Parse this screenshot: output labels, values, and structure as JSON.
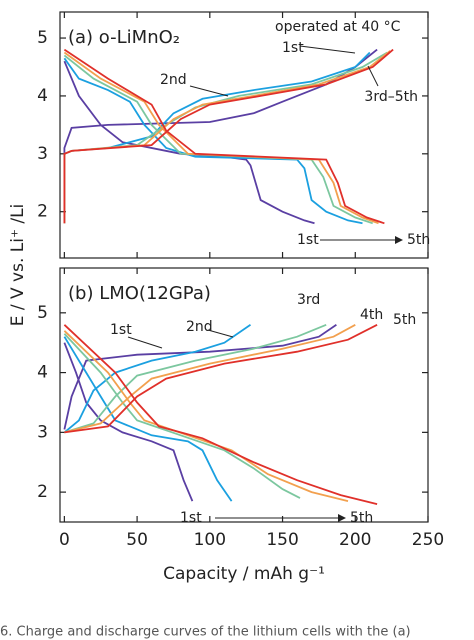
{
  "chart_data": [
    {
      "type": "line",
      "title": "(a) o-LiMnO₂",
      "y_label": "E / V vs. Li⁺ /Li",
      "xlim": [
        -3,
        250
      ],
      "ylim": [
        1.2,
        5.45
      ],
      "yticks": [
        2,
        3,
        4,
        5
      ],
      "annotations": [
        "operated at 40 °C",
        "1st",
        "2nd",
        "3rd–5th",
        "1st",
        "5th"
      ],
      "series": [
        {
          "color": "#5a3fa3",
          "x": [
            0,
            10,
            25,
            40,
            80,
            110,
            125,
            128,
            135,
            150,
            165,
            172
          ],
          "values": [
            4.6,
            4.0,
            3.5,
            3.2,
            3.0,
            2.95,
            2.9,
            2.8,
            2.2,
            2.0,
            1.85,
            1.8
          ]
        },
        {
          "color": "#5a3fa3",
          "x": [
            0,
            0,
            5,
            30,
            100,
            130,
            150,
            180,
            200,
            215
          ],
          "values": [
            1.8,
            3.1,
            3.45,
            3.5,
            3.55,
            3.7,
            3.9,
            4.2,
            4.5,
            4.8
          ]
        },
        {
          "color": "#1ba0e0",
          "x": [
            0,
            10,
            30,
            45,
            55,
            70,
            90,
            160,
            165,
            170,
            180,
            195,
            205
          ],
          "values": [
            4.65,
            4.3,
            4.1,
            3.9,
            3.5,
            3.1,
            2.95,
            2.9,
            2.75,
            2.2,
            2.0,
            1.85,
            1.8
          ]
        },
        {
          "color": "#1ba0e0",
          "x": [
            0,
            0,
            5,
            30,
            60,
            75,
            95,
            130,
            170,
            200,
            210
          ],
          "values": [
            1.8,
            3.0,
            3.05,
            3.1,
            3.3,
            3.7,
            3.95,
            4.1,
            4.25,
            4.5,
            4.75
          ]
        },
        {
          "color": "#7cc79f",
          "x": [
            0,
            20,
            50,
            60,
            80,
            170,
            178,
            185,
            200,
            212
          ],
          "values": [
            4.7,
            4.3,
            3.9,
            3.5,
            3.0,
            2.9,
            2.6,
            2.1,
            1.9,
            1.8
          ]
        },
        {
          "color": "#7cc79f",
          "x": [
            0,
            0,
            5,
            50,
            70,
            90,
            120,
            170,
            205,
            222
          ],
          "values": [
            1.8,
            3.0,
            3.05,
            3.15,
            3.5,
            3.8,
            4.0,
            4.2,
            4.5,
            4.75
          ]
        },
        {
          "color": "#f2a04e",
          "x": [
            0,
            25,
            55,
            65,
            85,
            175,
            185,
            190,
            205,
            216
          ],
          "values": [
            4.75,
            4.3,
            3.9,
            3.5,
            3.0,
            2.9,
            2.5,
            2.1,
            1.9,
            1.8
          ]
        },
        {
          "color": "#f2a04e",
          "x": [
            0,
            0,
            5,
            55,
            75,
            95,
            130,
            175,
            210,
            224
          ],
          "values": [
            1.8,
            3.0,
            3.05,
            3.15,
            3.6,
            3.85,
            4.0,
            4.2,
            4.5,
            4.78
          ]
        },
        {
          "color": "#e0302a",
          "x": [
            0,
            30,
            60,
            70,
            90,
            180,
            188,
            193,
            208,
            220
          ],
          "values": [
            4.8,
            4.3,
            3.85,
            3.4,
            3.0,
            2.9,
            2.5,
            2.1,
            1.9,
            1.8
          ]
        },
        {
          "color": "#e0302a",
          "x": [
            0,
            0,
            5,
            60,
            80,
            100,
            135,
            180,
            212,
            226
          ],
          "values": [
            1.8,
            3.0,
            3.05,
            3.15,
            3.6,
            3.85,
            4.0,
            4.2,
            4.5,
            4.8
          ]
        }
      ]
    },
    {
      "type": "line",
      "title": "(b) LMO(12GPa)",
      "x_label": "Capacity / mAh g⁻¹",
      "xlim": [
        -3,
        250
      ],
      "ylim": [
        1.5,
        5.75
      ],
      "xticks": [
        0,
        50,
        100,
        150,
        200,
        250
      ],
      "yticks": [
        2,
        3,
        4,
        5
      ],
      "annotations": [
        "1st",
        "2nd",
        "3rd",
        "4th",
        "5th",
        "1st",
        "5th"
      ],
      "series": [
        {
          "color": "#5a3fa3",
          "x": [
            0,
            8,
            15,
            25,
            40,
            60,
            75,
            82,
            88
          ],
          "values": [
            4.5,
            4.0,
            3.5,
            3.2,
            3.0,
            2.85,
            2.7,
            2.2,
            1.85
          ]
        },
        {
          "color": "#5a3fa3",
          "x": [
            0,
            5,
            15,
            50,
            100,
            150,
            175,
            187
          ],
          "values": [
            3.05,
            3.6,
            4.2,
            4.3,
            4.35,
            4.45,
            4.6,
            4.8
          ]
        },
        {
          "color": "#1ba0e0",
          "x": [
            0,
            15,
            25,
            35,
            60,
            85,
            95,
            105,
            115
          ],
          "values": [
            4.6,
            4.0,
            3.6,
            3.2,
            2.95,
            2.85,
            2.7,
            2.2,
            1.85
          ]
        },
        {
          "color": "#1ba0e0",
          "x": [
            0,
            10,
            20,
            35,
            60,
            90,
            110,
            128
          ],
          "values": [
            3.0,
            3.2,
            3.7,
            4.0,
            4.2,
            4.35,
            4.5,
            4.8
          ]
        },
        {
          "color": "#7cc79f",
          "x": [
            0,
            25,
            40,
            50,
            80,
            110,
            130,
            150,
            162
          ],
          "values": [
            4.65,
            4.0,
            3.5,
            3.2,
            2.95,
            2.7,
            2.4,
            2.05,
            1.9
          ]
        },
        {
          "color": "#7cc79f",
          "x": [
            0,
            20,
            35,
            50,
            90,
            130,
            160,
            180
          ],
          "values": [
            3.0,
            3.15,
            3.6,
            3.95,
            4.2,
            4.4,
            4.6,
            4.8
          ]
        },
        {
          "color": "#f2a04e",
          "x": [
            0,
            30,
            45,
            55,
            85,
            115,
            140,
            170,
            195
          ],
          "values": [
            4.7,
            4.0,
            3.5,
            3.2,
            2.95,
            2.7,
            2.3,
            2.0,
            1.85
          ]
        },
        {
          "color": "#f2a04e",
          "x": [
            0,
            25,
            45,
            60,
            100,
            150,
            185,
            200
          ],
          "values": [
            3.0,
            3.15,
            3.6,
            3.9,
            4.15,
            4.4,
            4.6,
            4.8
          ]
        },
        {
          "color": "#e0302a",
          "x": [
            0,
            35,
            50,
            65,
            95,
            130,
            160,
            190,
            215
          ],
          "values": [
            4.8,
            4.0,
            3.5,
            3.1,
            2.9,
            2.5,
            2.2,
            1.95,
            1.8
          ]
        },
        {
          "color": "#e0302a",
          "x": [
            0,
            30,
            50,
            70,
            110,
            160,
            195,
            215
          ],
          "values": [
            3.0,
            3.1,
            3.6,
            3.9,
            4.15,
            4.35,
            4.55,
            4.8
          ]
        }
      ]
    }
  ],
  "caption": "6.  Charge and discharge curves of the lithium cells with the (a)"
}
